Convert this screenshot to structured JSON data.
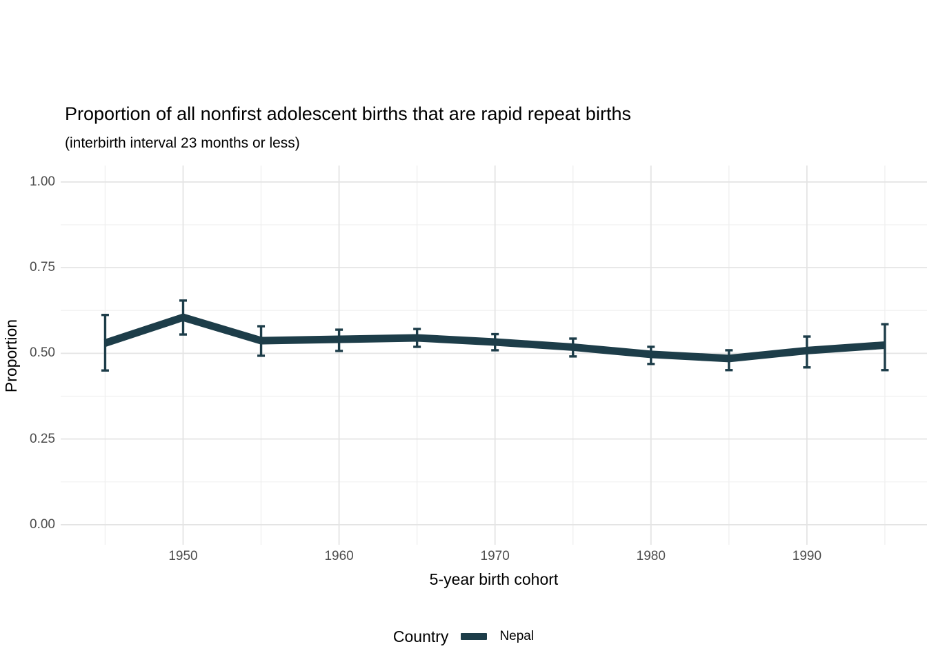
{
  "chart_data": {
    "type": "line",
    "title": "Proportion of all nonfirst adolescent births that are rapid repeat births",
    "subtitle": "(interbirth interval 23 months or less)",
    "xlabel": "5-year birth cohort",
    "ylabel": "Proportion",
    "legend_title": "Country",
    "legend_position": "bottom",
    "grid": true,
    "x": [
      1945,
      1950,
      1955,
      1960,
      1965,
      1970,
      1975,
      1980,
      1985,
      1990,
      1995
    ],
    "series": [
      {
        "name": "Nepal",
        "color": "#1D3D49",
        "values": [
          0.53,
          0.605,
          0.537,
          0.541,
          0.545,
          0.533,
          0.518,
          0.497,
          0.485,
          0.508,
          0.524
        ],
        "ci_low": [
          0.45,
          0.555,
          0.493,
          0.507,
          0.519,
          0.509,
          0.491,
          0.469,
          0.451,
          0.459,
          0.451
        ],
        "ci_high": [
          0.612,
          0.654,
          0.579,
          0.569,
          0.571,
          0.556,
          0.543,
          0.519,
          0.509,
          0.549,
          0.585
        ]
      }
    ],
    "x_ticks": [
      {
        "value": 1950,
        "label": "1950"
      },
      {
        "value": 1960,
        "label": "1960"
      },
      {
        "value": 1970,
        "label": "1970"
      },
      {
        "value": 1980,
        "label": "1980"
      },
      {
        "value": 1990,
        "label": "1990"
      }
    ],
    "y_ticks": [
      {
        "value": 0.0,
        "label": "0.00"
      },
      {
        "value": 0.25,
        "label": "0.25"
      },
      {
        "value": 0.5,
        "label": "0.50"
      },
      {
        "value": 0.75,
        "label": "0.75"
      },
      {
        "value": 1.0,
        "label": "1.00"
      }
    ],
    "x_minor": [
      1945,
      1955,
      1965,
      1975,
      1985,
      1995
    ],
    "y_minor": [
      0.125,
      0.375,
      0.625,
      0.875
    ],
    "xlim": [
      1942.15,
      1997.7
    ],
    "ylim": [
      -0.0585,
      1.048
    ],
    "grid_major_color": "#E4E4E4",
    "grid_minor_color": "#F0F0F0"
  }
}
